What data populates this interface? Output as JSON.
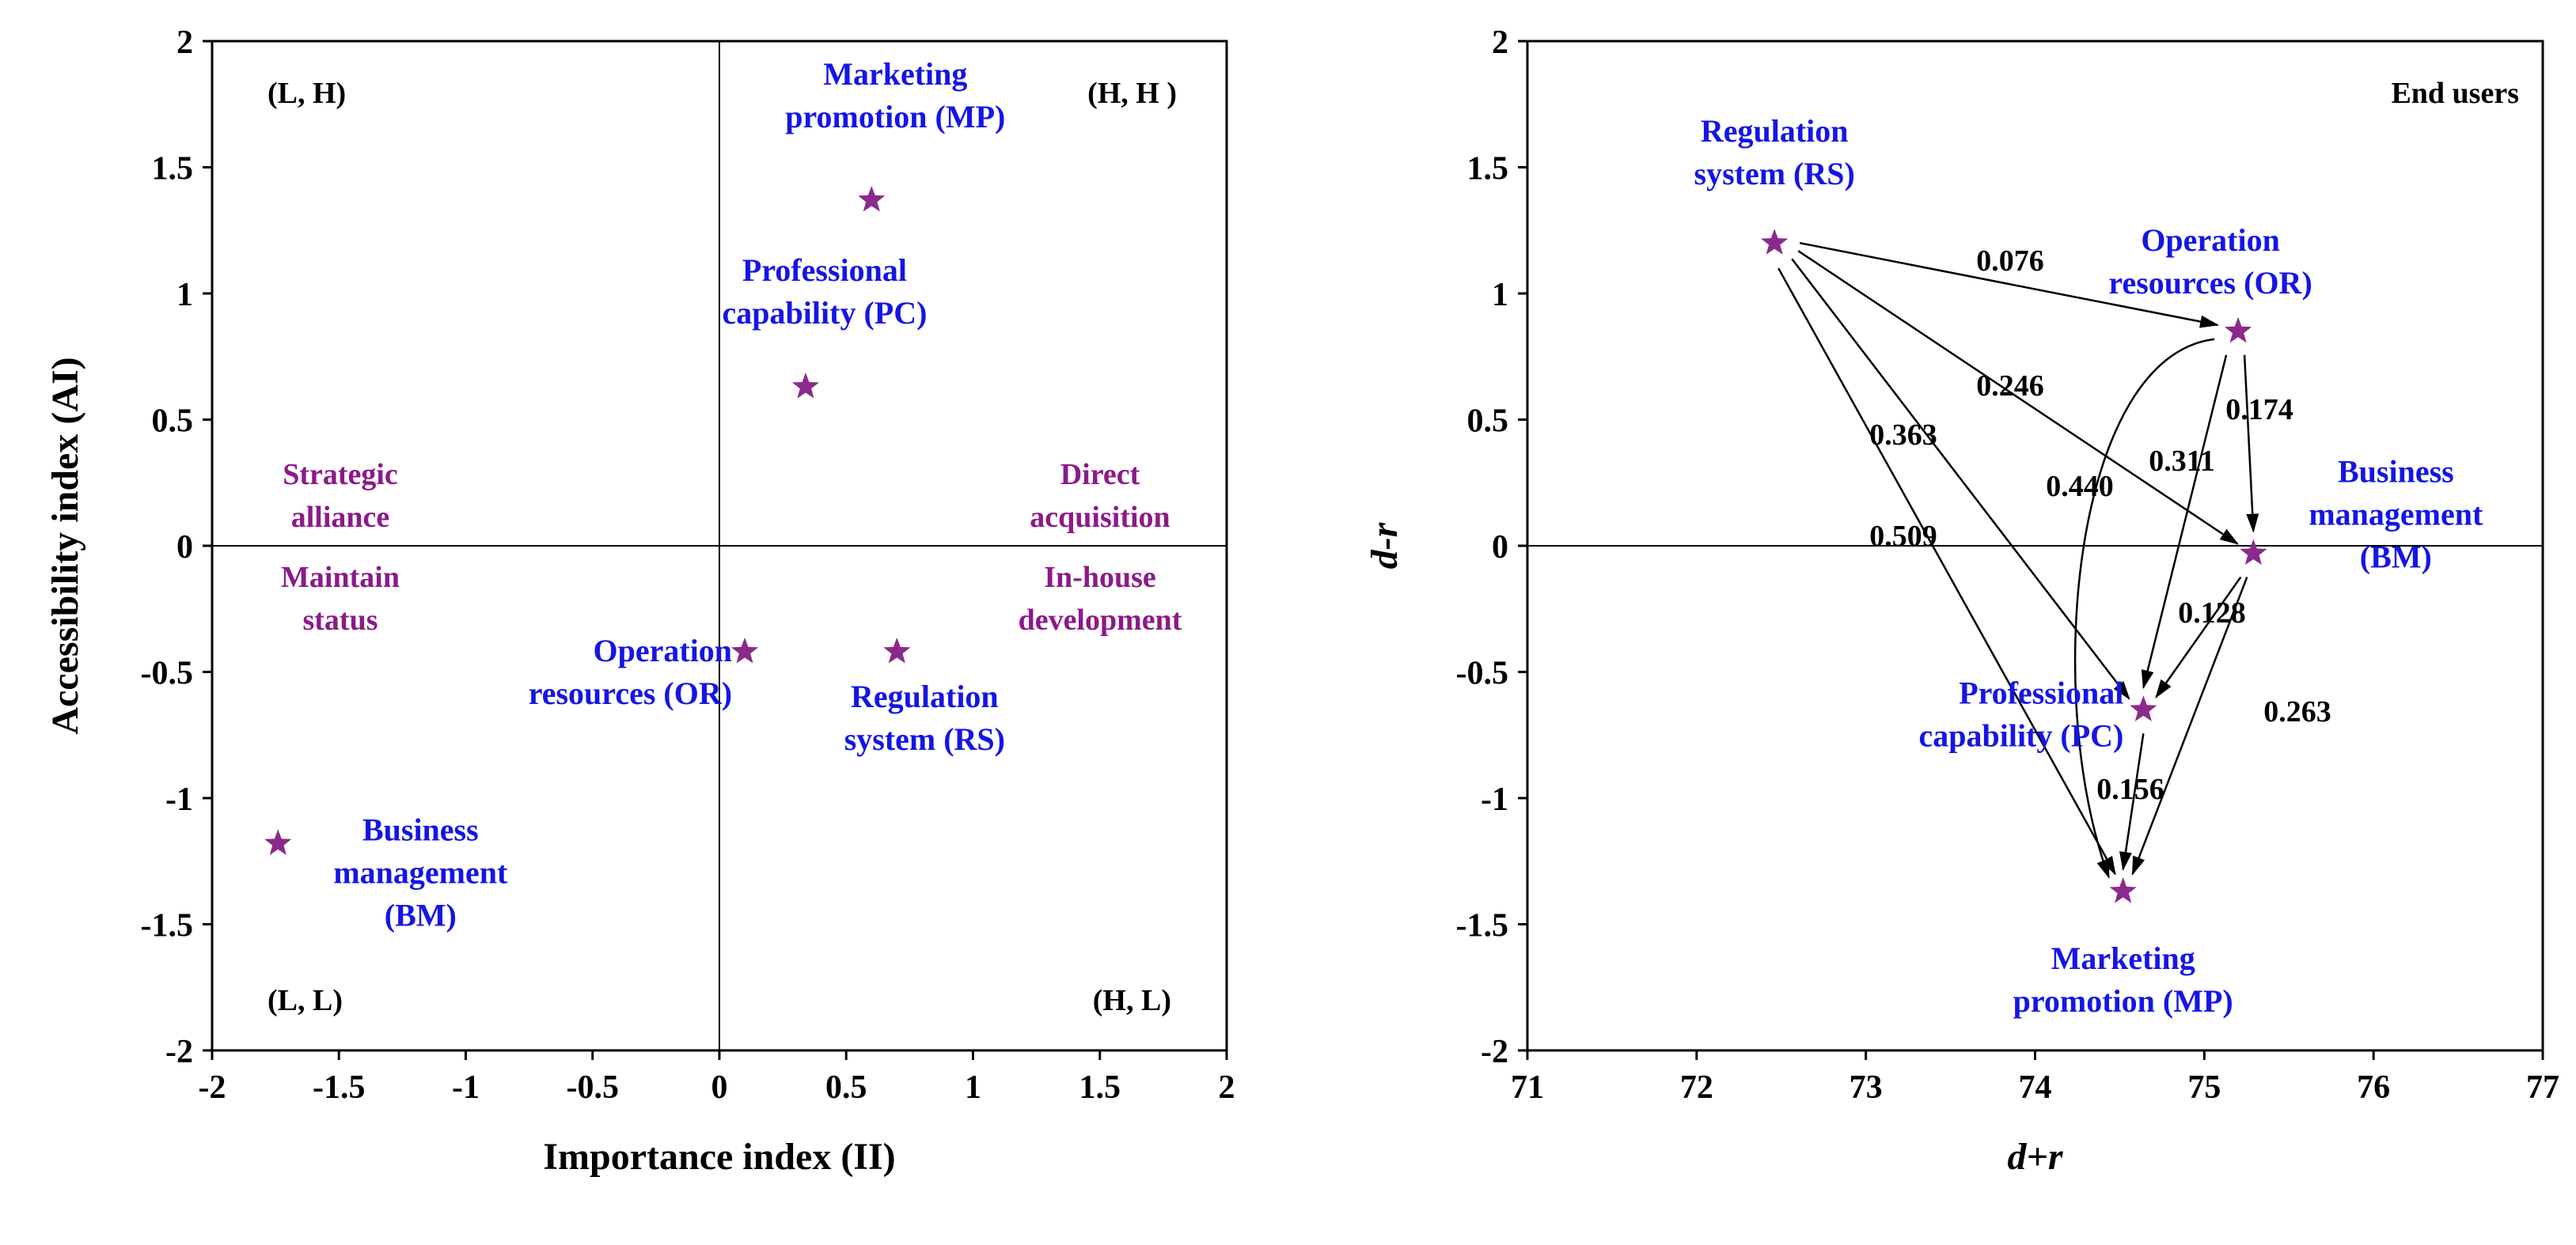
{
  "chart_data": [
    {
      "type": "scatter",
      "xlabel": "Importance index (II)",
      "ylabel": "Accessibility index (AI)",
      "xlim": [
        -2,
        2
      ],
      "ylim": [
        -2,
        2
      ],
      "xticks": [
        "-2",
        "-1.5",
        "-1",
        "-0.5",
        "0",
        "0.5",
        "1",
        "1.5",
        "2"
      ],
      "yticks": [
        "2",
        "1.5",
        "1",
        "0.5",
        "0",
        "-0.5",
        "-1",
        "-1.5",
        "-2"
      ],
      "quadrant_labels": {
        "top_left": "(L, H)",
        "top_right": "(H, H )",
        "bottom_left": "(L, L)",
        "bottom_right": "(H, L)"
      },
      "strategy_labels": {
        "top_left": [
          "Strategic",
          "alliance"
        ],
        "top_right": [
          "Direct",
          "acquisition"
        ],
        "bottom_left": [
          "Maintain",
          "status"
        ],
        "bottom_right": [
          "In-house",
          "development"
        ]
      },
      "points": [
        {
          "id": "MP",
          "x": 0.6,
          "y": 1.37,
          "label": [
            "Marketing",
            "promotion (MP)"
          ]
        },
        {
          "id": "PC",
          "x": 0.34,
          "y": 0.63,
          "label": [
            "Professional",
            "capability (PC)"
          ]
        },
        {
          "id": "OR",
          "x": 0.1,
          "y": -0.42,
          "label": [
            "Operation",
            "resources (OR)"
          ]
        },
        {
          "id": "RS",
          "x": 0.7,
          "y": -0.42,
          "label": [
            "Regulation",
            "system (RS)"
          ]
        },
        {
          "id": "BM",
          "x": -1.74,
          "y": -1.18,
          "label": [
            "Business",
            "management",
            "(BM)"
          ]
        }
      ]
    },
    {
      "type": "scatter",
      "title": "End users",
      "xlabel": "d+r",
      "ylabel": "d-r",
      "xlim": [
        71,
        77
      ],
      "ylim": [
        -2,
        2
      ],
      "xticks": [
        "71",
        "72",
        "73",
        "74",
        "75",
        "76",
        "77"
      ],
      "yticks": [
        "2",
        "1.5",
        "1",
        "0.5",
        "0",
        "-0.5",
        "-1",
        "-1.5",
        "-2"
      ],
      "points": [
        {
          "id": "RS",
          "x": 72.46,
          "y": 1.2,
          "label": [
            "Regulation",
            "system (RS)"
          ]
        },
        {
          "id": "OR",
          "x": 75.2,
          "y": 0.85,
          "label": [
            "Operation",
            "resources (OR)"
          ]
        },
        {
          "id": "BM",
          "x": 75.29,
          "y": -0.03,
          "label": [
            "Business",
            "management",
            "(BM)"
          ]
        },
        {
          "id": "PC",
          "x": 74.64,
          "y": -0.65,
          "label": [
            "Professional",
            "capability (PC)"
          ]
        },
        {
          "id": "MP",
          "x": 74.52,
          "y": -1.37,
          "label": [
            "Marketing",
            "promotion (MP)"
          ]
        }
      ],
      "edges": [
        {
          "from": "RS",
          "to": "OR",
          "weight": "0.076"
        },
        {
          "from": "RS",
          "to": "BM",
          "weight": "0.246"
        },
        {
          "from": "RS",
          "to": "PC",
          "weight": "0.363"
        },
        {
          "from": "RS",
          "to": "MP",
          "weight": "0.509"
        },
        {
          "from": "OR",
          "to": "BM",
          "weight": "0.174"
        },
        {
          "from": "OR",
          "to": "PC",
          "weight": "0.311"
        },
        {
          "from": "OR",
          "to": "MP",
          "weight": "0.440"
        },
        {
          "from": "BM",
          "to": "PC",
          "weight": "0.128"
        },
        {
          "from": "BM",
          "to": "MP",
          "weight": "0.263"
        },
        {
          "from": "PC",
          "to": "MP",
          "weight": "0.156"
        }
      ]
    }
  ]
}
